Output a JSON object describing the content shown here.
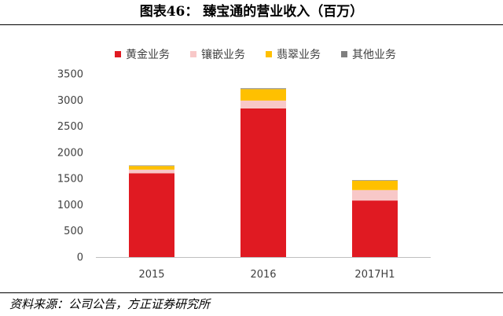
{
  "header": {
    "title": "图表46：  臻宝通的营业收入（百万）"
  },
  "footer": {
    "source": "资料来源：公司公告，方正证券研究所"
  },
  "chart_data": {
    "type": "bar",
    "stacked": true,
    "categories": [
      "2015",
      "2016",
      "2017H1"
    ],
    "series": [
      {
        "name": "黄金业务",
        "color": "#E01A22",
        "values": [
          1600,
          2840,
          1080
        ]
      },
      {
        "name": "镶嵌业务",
        "color": "#F8C8C8",
        "values": [
          70,
          150,
          200
        ]
      },
      {
        "name": "翡翠业务",
        "color": "#FFC000",
        "values": [
          70,
          220,
          180
        ]
      },
      {
        "name": "其他业务",
        "color": "#7F7F7F",
        "values": [
          10,
          15,
          10
        ]
      }
    ],
    "ylim": [
      0,
      3500
    ],
    "yticks": [
      0,
      500,
      1000,
      1500,
      2000,
      2500,
      3000,
      3500
    ],
    "legend_position": "top",
    "grid": false
  }
}
